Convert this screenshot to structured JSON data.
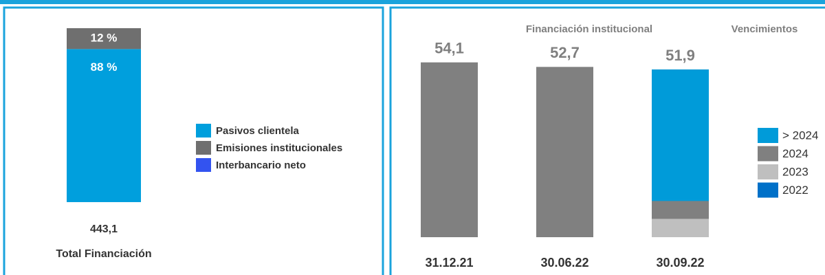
{
  "chart_data": [
    {
      "type": "stacked-bar",
      "series": [
        {
          "name": "Pasivos clientela",
          "color": "#009fdd",
          "values": [
            88
          ],
          "value_labels": [
            "88 %"
          ]
        },
        {
          "name": "Emisiones institucionales",
          "color": "#6f6f6f",
          "values": [
            12
          ],
          "value_labels": [
            "12 %"
          ]
        },
        {
          "name": "Interbancario neto",
          "color": "#3353f0",
          "values": [
            0
          ]
        }
      ],
      "total": 443.1,
      "total_label": "443,1",
      "xlabel": "Total Financiación"
    },
    {
      "type": "bar",
      "title": "Financiación institucional",
      "legend_title": "Vencimientos",
      "categories": [
        "31.12.21",
        "30.06.22",
        "30.09.22"
      ],
      "values": [
        54.1,
        52.7,
        51.9
      ],
      "value_labels": [
        "54,1",
        "52,7",
        "51,9"
      ],
      "color": "#808080",
      "series": [
        {
          "name": "> 2024",
          "color": "#009bd9",
          "values": [
            null,
            null,
            40.7
          ]
        },
        {
          "name": "2024",
          "color": "#808080",
          "values": [
            null,
            null,
            5.5
          ]
        },
        {
          "name": "2023",
          "color": "#bfbfbf",
          "values": [
            null,
            null,
            5.7
          ]
        },
        {
          "name": "2022",
          "color": "#0070c8",
          "values": [
            null,
            null,
            0
          ]
        }
      ],
      "legend": "right"
    }
  ]
}
